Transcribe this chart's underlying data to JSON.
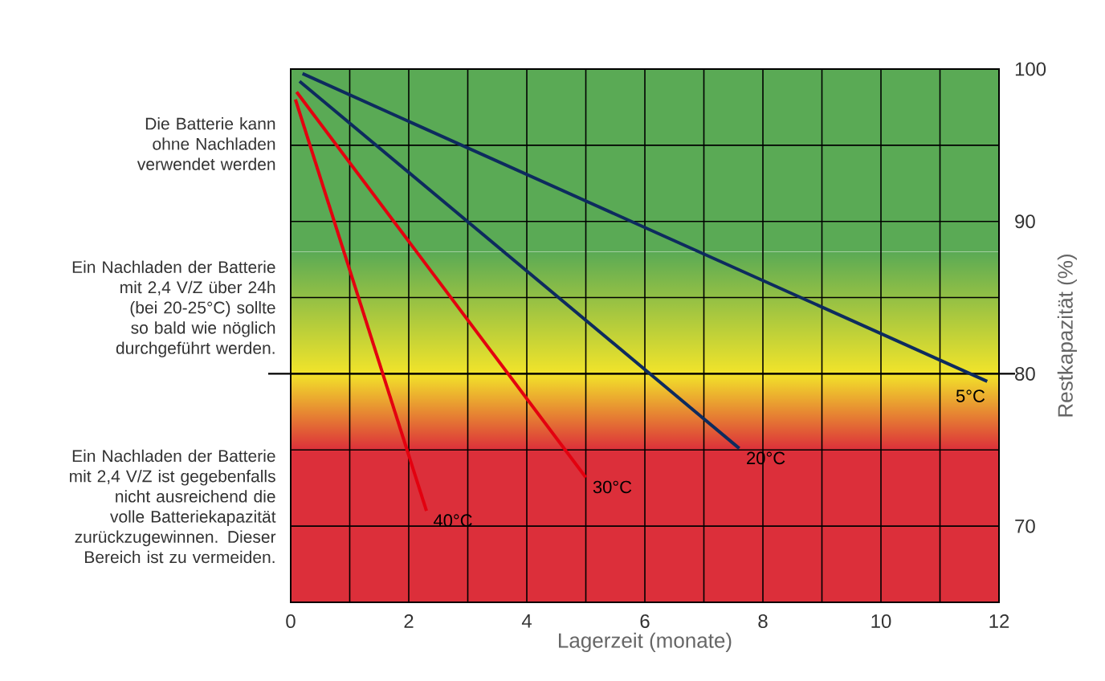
{
  "chart_data": {
    "type": "line",
    "xlabel": "Lagerzeit (monate)",
    "ylabel": "Restkapazität (%)",
    "xlim": [
      0,
      12
    ],
    "ylim": [
      65,
      100
    ],
    "xticks": [
      0,
      {
        "value": 1,
        "label": null
      },
      2,
      {
        "value": 3,
        "label": null
      },
      4,
      {
        "value": 5,
        "label": null
      },
      6,
      {
        "value": 7,
        "label": null
      },
      8,
      {
        "value": 9,
        "label": null
      },
      10,
      {
        "value": 11,
        "label": null
      },
      12
    ],
    "yticks": [
      70,
      {
        "value": 75,
        "label": null
      },
      80,
      {
        "value": 85,
        "label": null
      },
      90,
      {
        "value": 95,
        "label": null
      },
      100
    ],
    "grid": true,
    "line_style": "solid",
    "marker": "none",
    "series": [
      {
        "name": "5°C",
        "color": "#0d2b5e",
        "x": [
          0.2,
          11.8
        ],
        "values": [
          99.7,
          79.5
        ]
      },
      {
        "name": "20°C",
        "color": "#0d2b5e",
        "x": [
          0.15,
          7.6
        ],
        "values": [
          99.2,
          75.1
        ]
      },
      {
        "name": "30°C",
        "color": "#e3000f",
        "x": [
          0.1,
          5.0
        ],
        "values": [
          98.5,
          73.2
        ]
      },
      {
        "name": "40°C",
        "color": "#e3000f",
        "x": [
          0.08,
          2.3
        ],
        "values": [
          98.0,
          71.0
        ]
      }
    ],
    "ref_lines": [
      {
        "axis": "y",
        "value": 80,
        "color": "#000000"
      }
    ],
    "bands": [
      {
        "axis": "y",
        "from": 65,
        "to": 75,
        "color": "#dc2f3a"
      },
      {
        "axis": "y",
        "from": 75,
        "to": 80,
        "color": "#f2e42a"
      },
      {
        "axis": "y",
        "from": 80,
        "to": 88,
        "color": "#5aaa55"
      },
      {
        "axis": "y",
        "from": 88,
        "to": 100,
        "color": "#5aaa55"
      }
    ],
    "annotations": [
      "Die Batterie kann ohne Nachladen verwendet werden",
      "Ein Nachladen der Batterie mit 2,4 V/Z über 24h (bei 20-25°C) sollte so bald wie nöglich durchgeführt werden.",
      "Ein Nachladen der Batterie mit 2,4 V/Z ist gegebenfalls nicht ausreichend die volle Batteriekapazität zurückzugewinnen. Dieser Bereich ist zu vermeiden."
    ]
  }
}
